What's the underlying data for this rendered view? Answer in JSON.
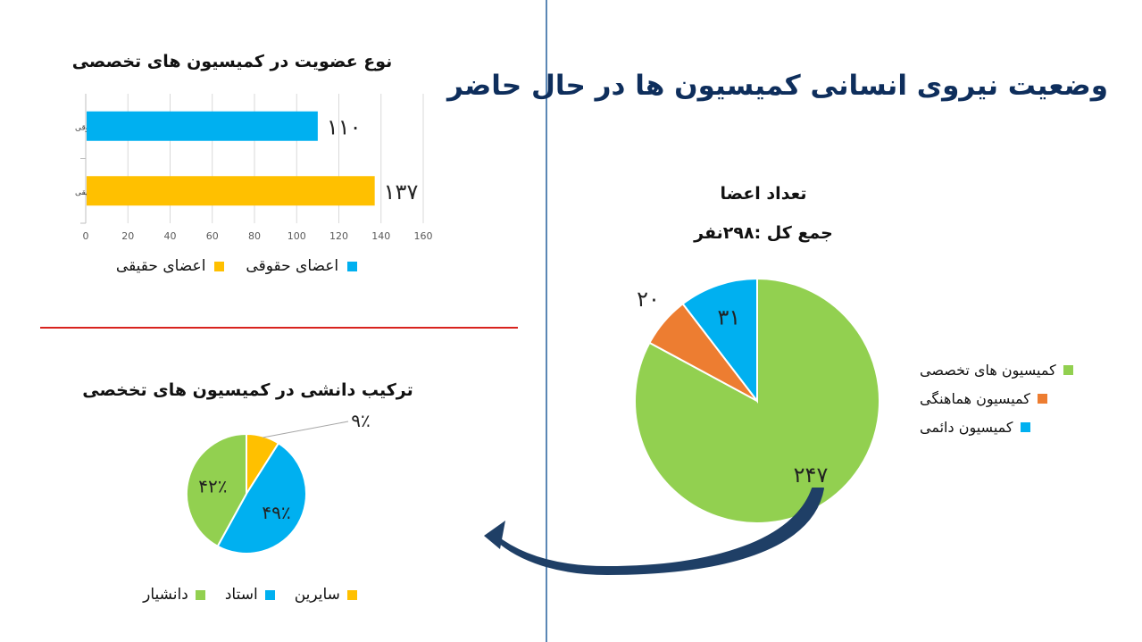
{
  "main_title": "وضعیت نیروی انسانی کمیسیون ها در حال حاضر",
  "colors": {
    "title": "#0e2e5c",
    "blue": "#00b0f0",
    "yellow": "#ffc000",
    "green": "#92d050",
    "orange": "#ed7d31",
    "divider_red": "#d8231e",
    "divider_blue": "#5b87b5",
    "arrow": "#1f3f66"
  },
  "chart_data": [
    {
      "type": "bar",
      "orientation": "horizontal",
      "title": "نوع عضویت در کمیسیون های تخصصی",
      "categories": [
        "اعضای حقوقی",
        "اعضای حقیقی"
      ],
      "series": [
        {
          "name": "اعضای حقوقی",
          "values": [
            110,
            null
          ],
          "color": "#00b0f0"
        },
        {
          "name": "اعضای حقیقی",
          "values": [
            null,
            137
          ],
          "color": "#ffc000"
        }
      ],
      "data_labels": [
        "۱۱۰",
        "۱۳۷"
      ],
      "xlim": [
        0,
        160
      ],
      "xticks": [
        "0",
        "20",
        "40",
        "60",
        "80",
        "100",
        "120",
        "140",
        "160"
      ],
      "grid": true,
      "legend": "bottom"
    },
    {
      "type": "pie",
      "title": "تعداد اعضا",
      "subtitle": "جمع کل :۲۹۸نفر",
      "slices": [
        {
          "label": "کمیسیون های تخصصی",
          "value": 247,
          "data_label": "۲۴۷",
          "color": "#92d050"
        },
        {
          "label": "کمیسیون هماهنگی",
          "value": 20,
          "data_label": "۲۰",
          "color": "#ed7d31"
        },
        {
          "label": "کمیسیون دائمی",
          "value": 31,
          "data_label": "۳۱",
          "color": "#00b0f0"
        }
      ],
      "legend": "right"
    },
    {
      "type": "pie",
      "title": "ترکیب دانشی در کمیسیون های تخخصی",
      "slices": [
        {
          "label": "سایرین",
          "value": 9,
          "data_label": "۹٪",
          "color": "#ffc000"
        },
        {
          "label": "استاد",
          "value": 49,
          "data_label": "۴۹٪",
          "color": "#00b0f0"
        },
        {
          "label": "دانشیار",
          "value": 42,
          "data_label": "۴۲٪",
          "color": "#92d050"
        }
      ],
      "legend": "bottom"
    }
  ]
}
